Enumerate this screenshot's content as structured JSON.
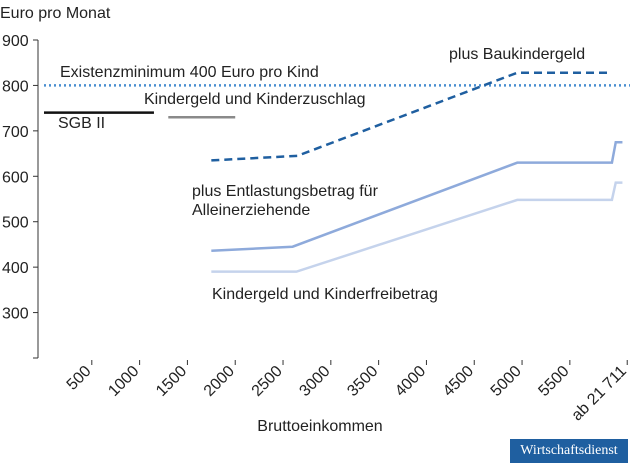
{
  "chart_data": {
    "type": "line",
    "y_label": "Euro pro Monat",
    "x_label": "Bruttoeinkommen",
    "source": "Wirtschaftsdienst",
    "xlim": [
      0,
      6150
    ],
    "ylim": [
      200,
      900
    ],
    "xticks": [
      500,
      1000,
      1500,
      2000,
      2500,
      3000,
      3500,
      4000,
      4500,
      5000,
      5500,
      {
        "value": 6100,
        "label": "ab 21 711"
      }
    ],
    "yticks": [
      300,
      400,
      500,
      600,
      700,
      800,
      900
    ],
    "series": [
      {
        "name": "Existenzminimum 400 Euro pro Kind",
        "color": "#4a8fd0",
        "style": "dotted",
        "x": [
          0,
          6150
        ],
        "values": [
          800,
          800
        ]
      },
      {
        "name": "SGB II",
        "color": "#111111",
        "style": "solid",
        "x": [
          0,
          1150
        ],
        "values": [
          740,
          740
        ]
      },
      {
        "name": "Kindergeld und Kinderzuschlag",
        "color": "#8a8a8a",
        "style": "solid",
        "x": [
          1300,
          2000
        ],
        "values": [
          730,
          730
        ]
      },
      {
        "name": "plus Baukindergeld",
        "color": "#1f5fa0",
        "style": "dashed",
        "x": [
          1750,
          2650,
          4950,
          5940
        ],
        "values": [
          635,
          645,
          828,
          828
        ]
      },
      {
        "name": "plus Entlastungsbetrag für Alleinerziehende",
        "color": "#8eaadb",
        "style": "solid",
        "x": [
          1750,
          2600,
          4950,
          5940,
          5980,
          6050
        ],
        "values": [
          436,
          445,
          630,
          630,
          675,
          675
        ]
      },
      {
        "name": "Kindergeld und Kinderfreibetrag",
        "color": "#c5d3ec",
        "style": "solid",
        "x": [
          1750,
          2640,
          4950,
          5940,
          5980,
          6050
        ],
        "values": [
          390,
          390,
          548,
          548,
          586,
          586
        ]
      }
    ]
  }
}
